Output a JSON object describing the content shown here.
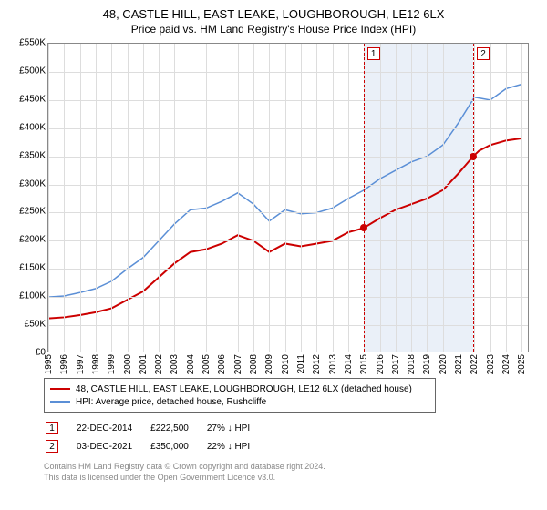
{
  "title": "48, CASTLE HILL, EAST LEAKE, LOUGHBOROUGH, LE12 6LX",
  "subtitle": "Price paid vs. HM Land Registry's House Price Index (HPI)",
  "chart": {
    "type": "line",
    "x_years": [
      1995,
      1996,
      1997,
      1998,
      1999,
      2000,
      2001,
      2002,
      2003,
      2004,
      2005,
      2006,
      2007,
      2008,
      2009,
      2010,
      2011,
      2012,
      2013,
      2014,
      2015,
      2016,
      2017,
      2018,
      2019,
      2020,
      2021,
      2022,
      2023,
      2024,
      2025
    ],
    "xlim": [
      1995,
      2025.5
    ],
    "ylim": [
      0,
      550000
    ],
    "ytick_step": 50000,
    "yticks": [
      "£0",
      "£50K",
      "£100K",
      "£150K",
      "£200K",
      "£250K",
      "£300K",
      "£350K",
      "£400K",
      "£450K",
      "£500K",
      "£550K"
    ],
    "grid_color": "#dddddd",
    "background_color": "#ffffff",
    "axis_fontsize": 10,
    "series": [
      {
        "name": "property",
        "label": "48, CASTLE HILL, EAST LEAKE, LOUGHBOROUGH, LE12 6LX (detached house)",
        "color": "#cc0000",
        "width": 2,
        "data": [
          [
            1995,
            62000
          ],
          [
            1996,
            64000
          ],
          [
            1997,
            68000
          ],
          [
            1998,
            73000
          ],
          [
            1999,
            80000
          ],
          [
            2000,
            95000
          ],
          [
            2001,
            110000
          ],
          [
            2002,
            135000
          ],
          [
            2003,
            160000
          ],
          [
            2004,
            180000
          ],
          [
            2005,
            185000
          ],
          [
            2006,
            195000
          ],
          [
            2007,
            210000
          ],
          [
            2008,
            200000
          ],
          [
            2009,
            180000
          ],
          [
            2010,
            195000
          ],
          [
            2011,
            190000
          ],
          [
            2012,
            195000
          ],
          [
            2013,
            200000
          ],
          [
            2014,
            215000
          ],
          [
            2014.97,
            222500
          ],
          [
            2016,
            240000
          ],
          [
            2017,
            255000
          ],
          [
            2018,
            265000
          ],
          [
            2019,
            275000
          ],
          [
            2020,
            290000
          ],
          [
            2021,
            320000
          ],
          [
            2021.92,
            350000
          ],
          [
            2022.3,
            360000
          ],
          [
            2023,
            370000
          ],
          [
            2024,
            378000
          ],
          [
            2025,
            382000
          ]
        ]
      },
      {
        "name": "hpi",
        "label": "HPI: Average price, detached house, Rushcliffe",
        "color": "#5b8fd6",
        "width": 1.5,
        "data": [
          [
            1995,
            100000
          ],
          [
            1996,
            102000
          ],
          [
            1997,
            108000
          ],
          [
            1998,
            115000
          ],
          [
            1999,
            128000
          ],
          [
            2000,
            150000
          ],
          [
            2001,
            170000
          ],
          [
            2002,
            200000
          ],
          [
            2003,
            230000
          ],
          [
            2004,
            255000
          ],
          [
            2005,
            258000
          ],
          [
            2006,
            270000
          ],
          [
            2007,
            285000
          ],
          [
            2008,
            265000
          ],
          [
            2009,
            235000
          ],
          [
            2010,
            255000
          ],
          [
            2011,
            248000
          ],
          [
            2012,
            250000
          ],
          [
            2013,
            258000
          ],
          [
            2014,
            275000
          ],
          [
            2015,
            290000
          ],
          [
            2016,
            310000
          ],
          [
            2017,
            325000
          ],
          [
            2018,
            340000
          ],
          [
            2019,
            350000
          ],
          [
            2020,
            370000
          ],
          [
            2021,
            410000
          ],
          [
            2022,
            455000
          ],
          [
            2023,
            450000
          ],
          [
            2024,
            470000
          ],
          [
            2025,
            478000
          ]
        ]
      }
    ],
    "highlight_band": {
      "from": 2014.97,
      "to": 2021.92,
      "color": "#eaf0f8"
    },
    "markers": [
      {
        "id": "1",
        "x": 2014.97,
        "y": 222500
      },
      {
        "id": "2",
        "x": 2021.92,
        "y": 350000
      }
    ]
  },
  "legend": {
    "rows": [
      {
        "color": "#cc0000",
        "label": "48, CASTLE HILL, EAST LEAKE, LOUGHBOROUGH, LE12 6LX (detached house)"
      },
      {
        "color": "#5b8fd6",
        "label": "HPI: Average price, detached house, Rushcliffe"
      }
    ]
  },
  "transactions": [
    {
      "num": "1",
      "date": "22-DEC-2014",
      "price": "£222,500",
      "delta": "27% ↓ HPI"
    },
    {
      "num": "2",
      "date": "03-DEC-2021",
      "price": "£350,000",
      "delta": "22% ↓ HPI"
    }
  ],
  "footer_line1": "Contains HM Land Registry data © Crown copyright and database right 2024.",
  "footer_line2": "This data is licensed under the Open Government Licence v3.0."
}
